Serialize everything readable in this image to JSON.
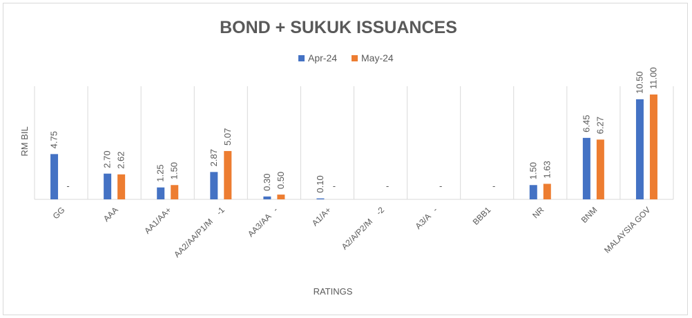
{
  "chart_data": {
    "type": "bar",
    "title": "BOND + SUKUK ISSUANCES",
    "xlabel": "RATINGS",
    "ylabel": "RM BIL",
    "legend_position": "top",
    "grid": "vertical-category-separators",
    "ylim": [
      0,
      11.5
    ],
    "categories": [
      "GG",
      "AAA",
      "AA1/AA+",
      "AA2/AA/P1/M    -1",
      "AA3/AA   -",
      "A1/A+",
      "A2/A/P2/M    -2",
      "A3/A   -",
      "BBB1",
      "NR",
      "BNM",
      "MALAYSIA GOV"
    ],
    "series": [
      {
        "name": "Apr-24",
        "color": "#4472c4",
        "values": [
          4.75,
          2.7,
          1.25,
          2.87,
          0.3,
          0.1,
          0,
          0,
          0,
          1.5,
          6.45,
          10.5
        ],
        "labels": [
          "4.75",
          "2.70",
          "1.25",
          "2.87",
          "0.30",
          "0.10",
          "",
          "",
          "",
          "1.50",
          "6.45",
          "10.50"
        ]
      },
      {
        "name": "May-24",
        "color": "#ed7d31",
        "values": [
          0,
          2.62,
          1.5,
          5.07,
          0.5,
          0,
          0,
          0,
          0,
          1.63,
          6.27,
          11.0
        ],
        "labels": [
          "-",
          "2.62",
          "1.50",
          "5.07",
          "0.50",
          "-",
          "-",
          "-",
          "-",
          "1.63",
          "6.27",
          "11.00"
        ]
      }
    ]
  }
}
